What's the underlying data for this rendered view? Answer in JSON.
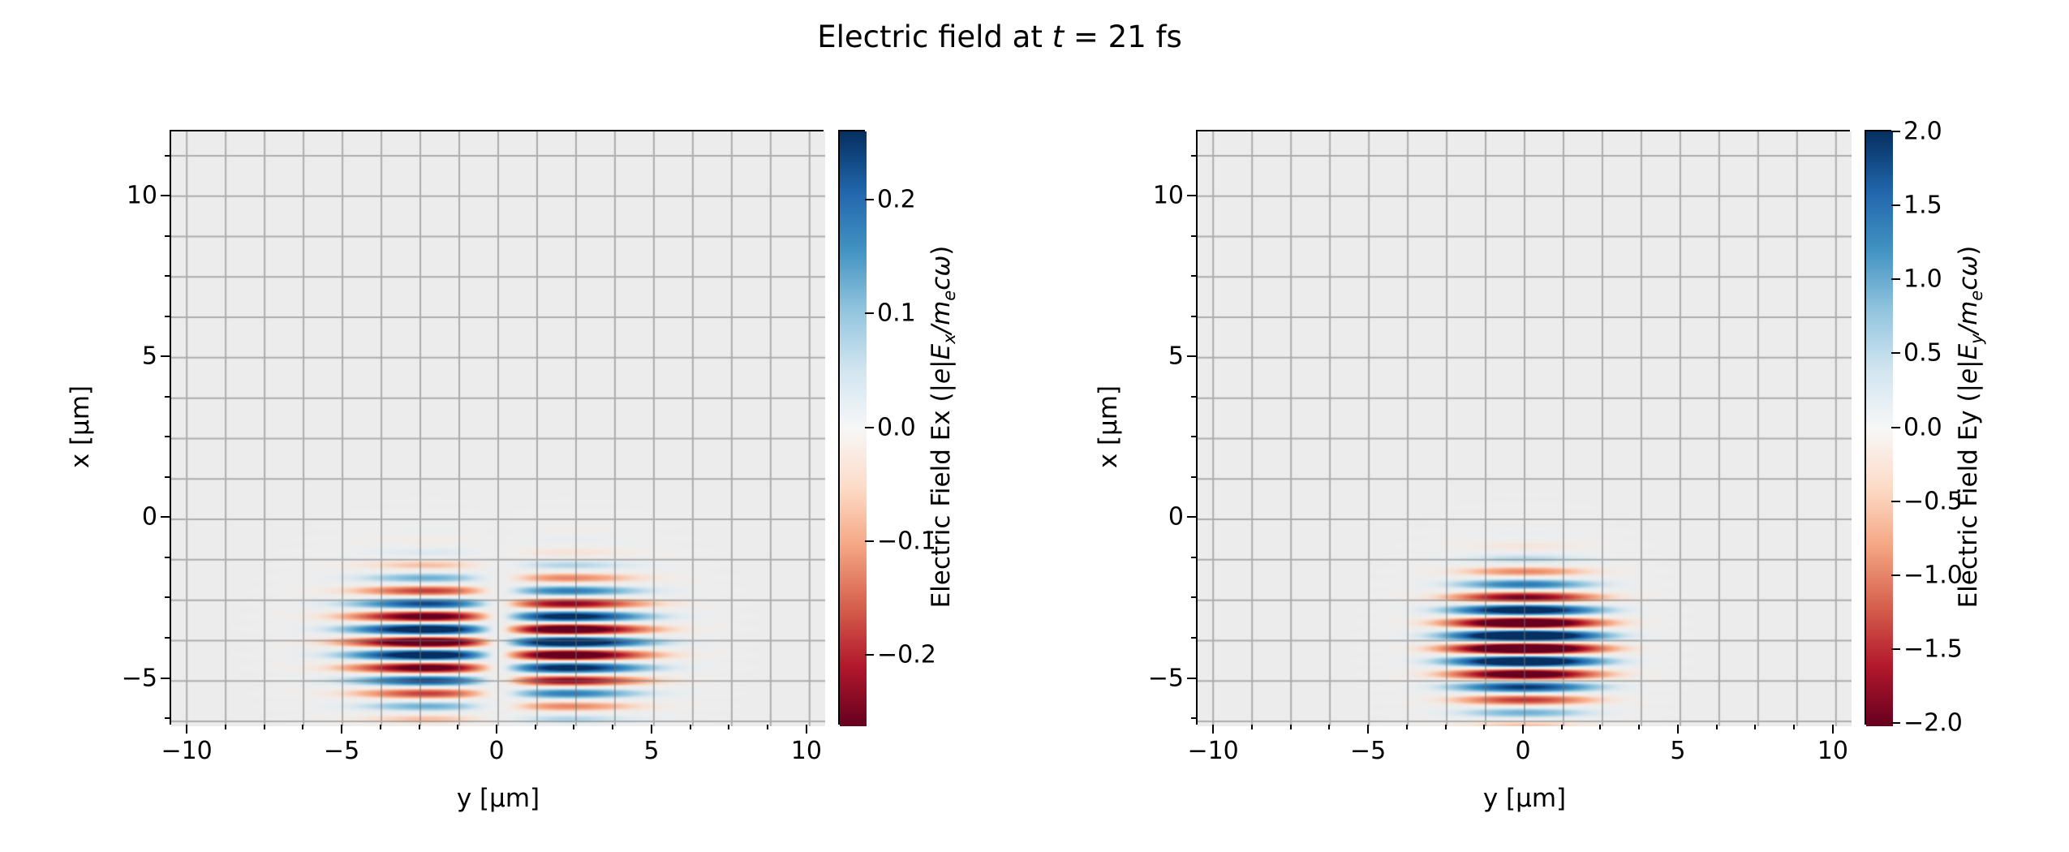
{
  "chart_data": {
    "type": "heatmap",
    "title": "Electric field at t = 21 fs",
    "title_parts": {
      "pre": "Electric field at ",
      "var": "t",
      "post": " = 21 fs"
    },
    "time_fs": 21,
    "colormap": {
      "name": "RdBu",
      "anchors": [
        [
          103,
          0,
          31
        ],
        [
          178,
          24,
          43
        ],
        [
          214,
          96,
          77
        ],
        [
          244,
          165,
          130
        ],
        [
          253,
          219,
          199
        ],
        [
          247,
          247,
          247
        ],
        [
          209,
          229,
          240
        ],
        [
          146,
          197,
          222
        ],
        [
          67,
          147,
          195
        ],
        [
          33,
          102,
          172
        ],
        [
          5,
          48,
          97
        ]
      ]
    },
    "plot_background": "#ececec",
    "grid": {
      "on": true,
      "step_um": 1.25,
      "color": "rgba(110,110,110,0.5)"
    },
    "panels": [
      {
        "key": "ex",
        "xlabel": "y [μm]",
        "ylabel": "x [μm]",
        "xlim": [
          -10.5,
          10.5
        ],
        "ylim": [
          -6.4,
          12.0
        ],
        "xticks": [
          {
            "v": -10,
            "label": "−10"
          },
          {
            "v": -5,
            "label": "−5"
          },
          {
            "v": 0,
            "label": "0"
          },
          {
            "v": 5,
            "label": "5"
          },
          {
            "v": 10,
            "label": "10"
          }
        ],
        "yticks": [
          {
            "v": -5,
            "label": "−5"
          },
          {
            "v": 0,
            "label": "0"
          },
          {
            "v": 5,
            "label": "5"
          },
          {
            "v": 10,
            "label": "10"
          }
        ],
        "clim": [
          -0.26,
          0.26
        ],
        "cbar_ticks": [
          {
            "v": 0.2,
            "label": "0.2"
          },
          {
            "v": 0.1,
            "label": "0.1"
          },
          {
            "v": 0.0,
            "label": "0.0"
          },
          {
            "v": -0.1,
            "label": "−0.1"
          },
          {
            "v": -0.2,
            "label": "−0.2"
          }
        ],
        "cbar_label": {
          "name": "Electric Field Ex (",
          "m1": "|e|E",
          "sub1": "x",
          "m2": "/m",
          "sub2": "e",
          "m3": "cω",
          "close": ")"
        },
        "field": {
          "component": "Ex",
          "odd_in_y": true,
          "amplitude": 0.8,
          "center_x_um": -3.8,
          "sigma_x_um": 2.0,
          "waist_um": 3.2,
          "wavelength_um": 0.8
        }
      },
      {
        "key": "ey",
        "xlabel": "y [μm]",
        "ylabel": "x [μm]",
        "xlim": [
          -10.5,
          10.5
        ],
        "ylim": [
          -6.4,
          12.0
        ],
        "xticks": [
          {
            "v": -10,
            "label": "−10"
          },
          {
            "v": -5,
            "label": "−5"
          },
          {
            "v": 0,
            "label": "0"
          },
          {
            "v": 5,
            "label": "5"
          },
          {
            "v": 10,
            "label": "10"
          }
        ],
        "yticks": [
          {
            "v": -5,
            "label": "−5"
          },
          {
            "v": 0,
            "label": "0"
          },
          {
            "v": 5,
            "label": "5"
          },
          {
            "v": 10,
            "label": "10"
          }
        ],
        "clim": [
          -2.0,
          2.0
        ],
        "cbar_ticks": [
          {
            "v": 2.0,
            "label": "2.0"
          },
          {
            "v": 1.5,
            "label": "1.5"
          },
          {
            "v": 1.0,
            "label": "1.0"
          },
          {
            "v": 0.5,
            "label": "0.5"
          },
          {
            "v": 0.0,
            "label": "0.0"
          },
          {
            "v": -0.5,
            "label": "−0.5"
          },
          {
            "v": -1.0,
            "label": "−1.0"
          },
          {
            "v": -1.5,
            "label": "−1.5"
          },
          {
            "v": -2.0,
            "label": "−2.0"
          }
        ],
        "cbar_label": {
          "name": "Electric Field Ey (",
          "m1": "|e|E",
          "sub1": "y",
          "m2": "/m",
          "sub2": "e",
          "m3": "cω",
          "close": ")"
        },
        "field": {
          "component": "Ey",
          "odd_in_y": false,
          "amplitude": 3.2,
          "center_x_um": -3.8,
          "sigma_x_um": 2.0,
          "waist_um": 2.4,
          "wavelength_um": 0.8
        }
      }
    ]
  }
}
